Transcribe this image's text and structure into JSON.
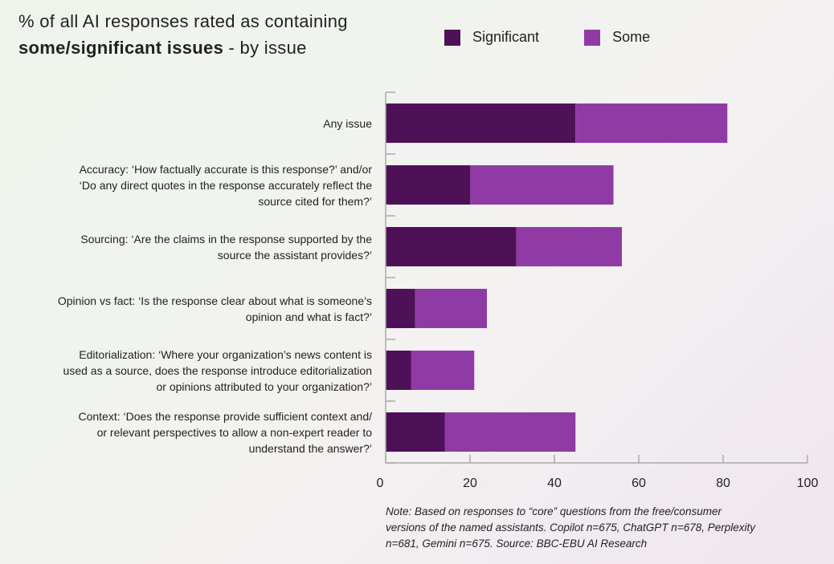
{
  "title": {
    "line1": "% of all AI responses rated as containing",
    "line2_bold": "some/significant issues",
    "line2_rest": " - by issue"
  },
  "colors": {
    "significant": "#4e1157",
    "some": "#903aa5",
    "axis": "#aaaaaa"
  },
  "legend": {
    "significant": "Significant",
    "some": "Some"
  },
  "chart_data": {
    "type": "bar",
    "orientation": "horizontal",
    "stacked": true,
    "categories": [
      "Any issue",
      "Accuracy: ‘How factually accurate is this response?’ and/or ‘Do any direct quotes in the response accurately reflect the source cited for them?’",
      "Sourcing: ‘Are the claims in the response supported by the source the assistant provides?’",
      "Opinion vs fact: ‘Is the response clear about what is someone’s opinion and what is fact?’",
      "Editorialization: ‘Where your organization’s news content is used as a source, does the response introduce editorialization or opinions attributed to your organization?’",
      "Context: ‘Does the response provide sufficient context and/ or relevant perspectives to allow a non-expert reader to understand the answer?’"
    ],
    "category_lines": [
      [
        "Any issue"
      ],
      [
        "Accuracy: ‘How factually accurate is this response?’ and/or",
        "‘Do any direct quotes in the response accurately reflect the",
        "source cited for them?’"
      ],
      [
        "Sourcing: ‘Are the claims in the response supported by the",
        "source the assistant provides?’"
      ],
      [
        "Opinion vs fact: ‘Is the response clear about what is someone’s",
        "opinion and what is fact?’"
      ],
      [
        "Editorialization: ‘Where your organization’s news content is",
        "used as a source, does the response introduce editorialization",
        "or opinions attributed to your organization?’"
      ],
      [
        "Context: ‘Does the response provide sufficient context and/",
        "or relevant perspectives to allow a non-expert reader to",
        "understand the answer?’"
      ]
    ],
    "series": [
      {
        "name": "Significant",
        "values": [
          45,
          20,
          31,
          7,
          6,
          14
        ]
      },
      {
        "name": "Some",
        "values": [
          36,
          34,
          25,
          17,
          15,
          31
        ]
      }
    ],
    "xlim": [
      0,
      100
    ],
    "xticks": [
      0,
      20,
      40,
      60,
      80,
      100
    ],
    "grid": false,
    "legend_position": "top"
  },
  "note": {
    "lines": [
      "Note: Based on responses to “core” questions from the free/consumer",
      "versions of the named assistants. Copilot n=675, ChatGPT n=678, Perplexity",
      "n=681, Gemini n=675. Source: BBC-EBU AI Research"
    ]
  }
}
